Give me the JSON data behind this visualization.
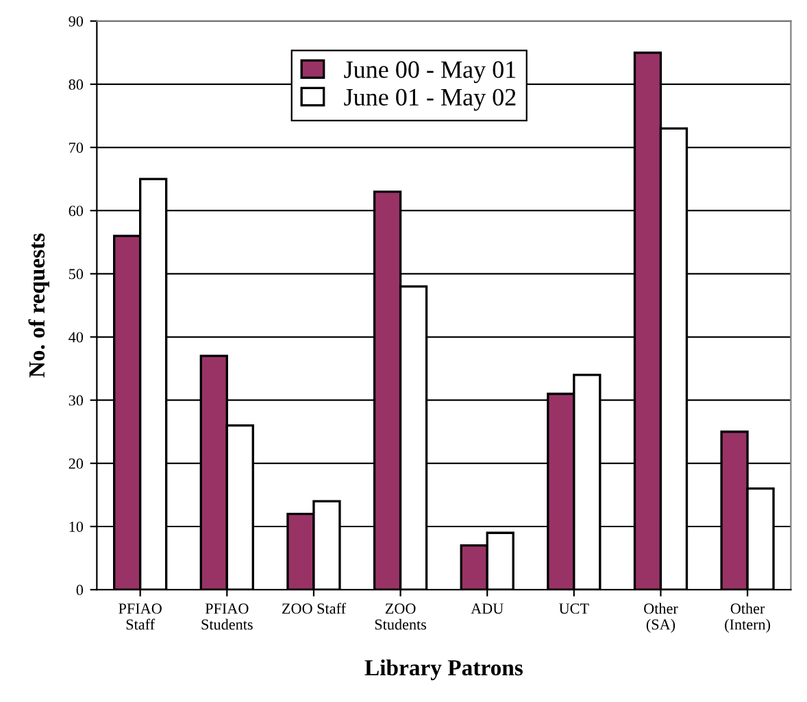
{
  "chart_data": {
    "type": "bar",
    "xlabel": "Library Patrons",
    "ylabel": "No. of requests",
    "categories": [
      "PFIAO\nStaff",
      "PFIAO\nStudents",
      "ZOO Staff",
      "ZOO\nStudents",
      "ADU",
      "UCT",
      "Other\n(SA)",
      "Other\n(Intern)"
    ],
    "series": [
      {
        "name": "June 00 - May 01",
        "color": "#993366",
        "values": [
          56,
          37,
          12,
          63,
          7,
          31,
          85,
          25
        ]
      },
      {
        "name": "June 01 - May 02",
        "color": "#ffffff",
        "values": [
          65,
          26,
          14,
          48,
          9,
          34,
          73,
          16
        ]
      }
    ],
    "ylim": [
      0,
      90
    ],
    "yticks": [
      0,
      10,
      20,
      30,
      40,
      50,
      60,
      70,
      80,
      90
    ],
    "grid": "y",
    "legend": "top"
  }
}
